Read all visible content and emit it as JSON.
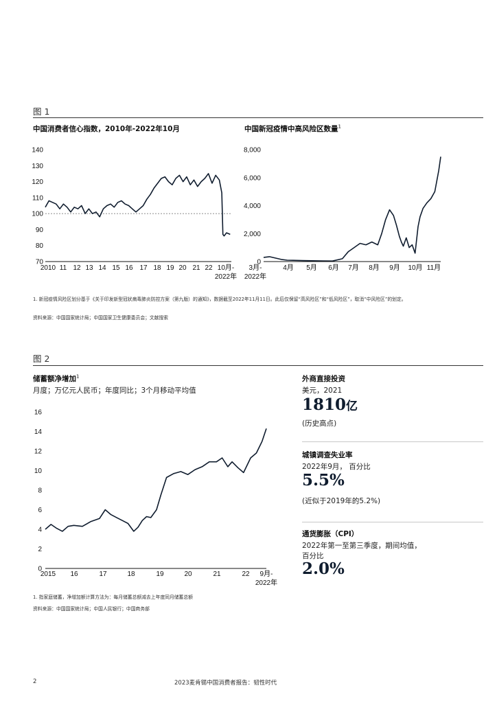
{
  "figure1": {
    "label": "图 1",
    "left_title": "中国消费者信心指数，2010年-2022年10月",
    "right_title": "中国新冠疫情中高风险区数量",
    "right_title_sup": "1",
    "note": "1. 新冠疫情风险区划分基于《关于印发新型冠状病毒肺炎防控方案（第九版）的通知》，数据截至2022年11月11日。此后仅保留“高风险区”和“低风险区”，取消“中风险区”的划定。",
    "source": "资料来源：中国国家统计局；中国国家卫生健康委员会；文献搜索"
  },
  "figure2": {
    "label": "图 2",
    "chart_title": "储蓄额净增加",
    "chart_title_sup": "1",
    "chart_subtitle": "月度；万亿元人民币；年度同比；3个月移动平均值",
    "note": "1. 指家庭储蓄，净增加额计算方法为：每月储蓄总额减去上年度同月储蓄总额",
    "source": "资料来源：中国国家统计局；中国人民银行；中国商务部"
  },
  "stats": [
    {
      "title": "外商直接投资",
      "subtitle": "美元，2021",
      "big_number": "1810",
      "big_unit": "亿",
      "note": "(历史高点)"
    },
    {
      "title": "城镇调查失业率",
      "subtitle": "2022年9月， 百分比",
      "big_number": "5.5%",
      "note": "(近似于2019年的5.2%)"
    },
    {
      "title": "通货膨胀（CPI）",
      "subtitle_line1": "2022年第一至第三季度，期间均值，",
      "subtitle_line2": "百分比",
      "big_number": "2.0%"
    }
  ],
  "footer": {
    "page_number": "2",
    "report_title": "2023麦肯锡中国消费者报告：韧性时代"
  },
  "chart_data": [
    {
      "type": "line",
      "title": "中国消费者信心指数，2010年-2022年10月",
      "y_ticks": [
        "140",
        "130",
        "120",
        "110",
        "100",
        "90",
        "80",
        "70"
      ],
      "x_ticks": [
        "2010",
        "11",
        "12",
        "13",
        "14",
        "15",
        "16",
        "17",
        "18",
        "19",
        "20",
        "21",
        "22",
        "10月-",
        "2022年"
      ],
      "ylim": [
        70,
        140
      ],
      "reference_line": 100,
      "series": [
        {
          "x": [
            2010.0,
            2010.25,
            2010.5,
            2010.75,
            2011.0,
            2011.25,
            2011.5,
            2011.75,
            2012.0,
            2012.25,
            2012.5,
            2012.75,
            2013.0,
            2013.25,
            2013.5,
            2013.75,
            2014.0,
            2014.25,
            2014.5,
            2014.75,
            2015.0,
            2015.25,
            2015.5,
            2015.75,
            2016.0,
            2016.25,
            2016.5,
            2016.75,
            2017.0,
            2017.25,
            2017.5,
            2017.75,
            2018.0,
            2018.25,
            2018.5,
            2018.75,
            2019.0,
            2019.25,
            2019.5,
            2019.75,
            2020.0,
            2020.25,
            2020.5,
            2020.75,
            2021.0,
            2021.25,
            2021.5,
            2021.75,
            2022.0,
            2022.17,
            2022.25,
            2022.33,
            2022.5,
            2022.75
          ],
          "values": [
            104,
            108,
            107,
            106,
            103,
            106,
            104,
            101,
            104,
            103,
            105,
            100,
            103,
            100,
            101,
            98,
            103,
            105,
            106,
            104,
            107,
            108,
            106,
            105,
            103,
            101,
            103,
            105,
            109,
            112,
            116,
            119,
            122,
            123,
            120,
            118,
            122,
            124,
            120,
            123,
            118,
            121,
            117,
            120,
            122,
            125,
            119,
            124,
            121,
            113,
            87,
            86,
            88,
            87
          ]
        }
      ]
    },
    {
      "type": "line",
      "title": "中国新冠疫情中高风险区数量",
      "y_ticks": [
        "8,000",
        "6,000",
        "4,000",
        "2,000",
        "0"
      ],
      "x_ticks": [
        "3月-",
        "2022年",
        "4月",
        "5月",
        "6月",
        "7月",
        "8月",
        "9月",
        "10月",
        "11月"
      ],
      "ylim": [
        0,
        8000
      ],
      "series": [
        {
          "x": [
            0,
            0.3,
            0.6,
            0.9,
            1.2,
            1.5,
            2.0,
            2.5,
            3.0,
            3.5,
            4.0,
            4.3,
            4.6,
            4.9,
            5.2,
            5.5,
            5.8,
            6.0,
            6.2,
            6.4,
            6.6,
            6.75,
            6.9,
            7.0,
            7.1,
            7.25,
            7.4,
            7.55,
            7.7,
            7.85,
            7.95,
            8.1,
            8.3,
            8.5,
            8.7,
            8.9,
            9.0
          ],
          "values": [
            300,
            350,
            250,
            150,
            100,
            90,
            70,
            60,
            50,
            40,
            200,
            700,
            1000,
            1300,
            1200,
            1400,
            1200,
            2000,
            3000,
            3700,
            3300,
            2600,
            1800,
            1400,
            1100,
            1700,
            1000,
            1200,
            600,
            2500,
            3200,
            3800,
            4200,
            4500,
            5000,
            6500,
            7500
          ]
        }
      ]
    },
    {
      "type": "line",
      "title": "储蓄额净增加",
      "y_ticks": [
        "16",
        "14",
        "12",
        "10",
        "8",
        "6",
        "4",
        "2",
        "0"
      ],
      "x_ticks": [
        "2015",
        "16",
        "17",
        "18",
        "19",
        "20",
        "21",
        "22",
        "9月-",
        "2022年"
      ],
      "ylim": [
        0,
        16
      ],
      "series": [
        {
          "x": [
            2015.0,
            2015.2,
            2015.4,
            2015.6,
            2015.8,
            2016.0,
            2016.3,
            2016.6,
            2016.9,
            2017.1,
            2017.3,
            2017.5,
            2017.7,
            2017.9,
            2018.1,
            2018.25,
            2018.4,
            2018.55,
            2018.7,
            2018.9,
            2019.05,
            2019.25,
            2019.5,
            2019.75,
            2020.0,
            2020.25,
            2020.5,
            2020.75,
            2021.0,
            2021.2,
            2021.4,
            2021.55,
            2021.75,
            2021.95,
            2022.2,
            2022.4,
            2022.6,
            2022.75
          ],
          "values": [
            4.0,
            4.5,
            4.1,
            3.8,
            4.3,
            4.4,
            4.3,
            4.8,
            5.1,
            6.0,
            5.5,
            5.2,
            4.9,
            4.6,
            3.8,
            4.2,
            4.9,
            5.3,
            5.2,
            6.0,
            7.5,
            9.3,
            9.7,
            9.9,
            9.6,
            10.1,
            10.4,
            10.9,
            10.9,
            11.3,
            10.4,
            10.9,
            10.3,
            9.8,
            11.3,
            11.8,
            13.0,
            14.3
          ]
        }
      ]
    }
  ]
}
